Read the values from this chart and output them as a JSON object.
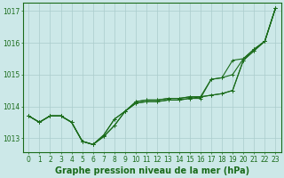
{
  "title": "Graphe pression niveau de la mer (hPa)",
  "xlabel_ticks": [
    "0",
    "1",
    "2",
    "3",
    "4",
    "5",
    "6",
    "7",
    "8",
    "9",
    "10",
    "11",
    "12",
    "13",
    "14",
    "15",
    "16",
    "17",
    "18",
    "19",
    "20",
    "21",
    "22",
    "23"
  ],
  "x": [
    0,
    1,
    2,
    3,
    4,
    5,
    6,
    7,
    8,
    9,
    10,
    11,
    12,
    13,
    14,
    15,
    16,
    17,
    18,
    19,
    20,
    21,
    22,
    23
  ],
  "lines": [
    [
      1013.7,
      1013.5,
      1013.7,
      1013.7,
      1013.5,
      1012.9,
      1012.8,
      1013.05,
      1013.4,
      1013.85,
      1014.1,
      1014.15,
      1014.15,
      1014.2,
      1014.2,
      1014.25,
      1014.3,
      1014.85,
      1014.9,
      1015.45,
      1015.5,
      1015.8,
      1016.05,
      1017.1
    ],
    [
      1013.7,
      1013.5,
      1013.7,
      1013.7,
      1013.5,
      1012.9,
      1012.8,
      1013.05,
      1013.4,
      1013.85,
      1014.1,
      1014.15,
      1014.15,
      1014.2,
      1014.2,
      1014.25,
      1014.25,
      1014.85,
      1014.9,
      1015.0,
      1015.5,
      1015.8,
      1016.05,
      1017.1
    ],
    [
      1013.7,
      1013.5,
      1013.7,
      1013.7,
      1013.5,
      1012.9,
      1012.8,
      1013.1,
      1013.6,
      1013.85,
      1014.15,
      1014.2,
      1014.2,
      1014.25,
      1014.25,
      1014.3,
      1014.3,
      1014.35,
      1014.4,
      1014.5,
      1015.45,
      1015.75,
      1016.05,
      1017.1
    ],
    [
      1013.7,
      1013.5,
      1013.7,
      1013.7,
      1013.5,
      1012.9,
      1012.8,
      1013.1,
      1013.6,
      1013.85,
      1014.15,
      1014.2,
      1014.2,
      1014.25,
      1014.25,
      1014.3,
      1014.3,
      1014.35,
      1014.4,
      1014.5,
      1015.45,
      1015.75,
      1016.05,
      1017.1
    ]
  ],
  "line_color": "#1a6b1a",
  "marker": "+",
  "markersize": 3,
  "linewidth": 0.8,
  "ylim": [
    1012.55,
    1017.25
  ],
  "yticks": [
    1013,
    1014,
    1015,
    1016,
    1017
  ],
  "background_color": "#cce8e8",
  "grid_color": "#aacccc",
  "title_color": "#1a6b1a",
  "title_fontsize": 7.0,
  "tick_fontsize": 5.5,
  "title_fontweight": "bold",
  "border_color": "#1a6b1a"
}
